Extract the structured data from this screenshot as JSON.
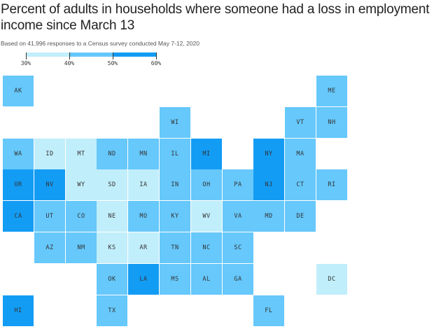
{
  "header": {
    "title": "Percent of adults in households where someone had a loss in employment income since March 13",
    "subtitle": "Based on 41,996 responses to a Census survey conducted May 7-12, 2020"
  },
  "colors": {
    "bin_30_40": "#c1eefb",
    "bin_40_50": "#66c8fb",
    "bin_50_60": "#139cf4"
  },
  "chart_data": {
    "type": "tile-grid-map",
    "title": "Percent of adults in households where someone had a loss in employment income since March 13",
    "subtitle": "Based on 41,996 responses to a Census survey conducted May 7-12, 2020",
    "legend": {
      "ticks": [
        "30%",
        "40%",
        "50%",
        "60%"
      ],
      "bins": [
        {
          "range": [
            30,
            40
          ],
          "color": "#c1eefb"
        },
        {
          "range": [
            40,
            50
          ],
          "color": "#66c8fb"
        },
        {
          "range": [
            50,
            60
          ],
          "color": "#139cf4"
        }
      ]
    },
    "states": [
      {
        "abbr": "AK",
        "row": 0,
        "col": 0,
        "bin": 1
      },
      {
        "abbr": "ME",
        "row": 0,
        "col": 10,
        "bin": 1
      },
      {
        "abbr": "WI",
        "row": 1,
        "col": 5,
        "bin": 1
      },
      {
        "abbr": "VT",
        "row": 1,
        "col": 9,
        "bin": 1
      },
      {
        "abbr": "NH",
        "row": 1,
        "col": 10,
        "bin": 1
      },
      {
        "abbr": "WA",
        "row": 2,
        "col": 0,
        "bin": 1
      },
      {
        "abbr": "ID",
        "row": 2,
        "col": 1,
        "bin": 0
      },
      {
        "abbr": "MT",
        "row": 2,
        "col": 2,
        "bin": 0
      },
      {
        "abbr": "ND",
        "row": 2,
        "col": 3,
        "bin": 1
      },
      {
        "abbr": "MN",
        "row": 2,
        "col": 4,
        "bin": 1
      },
      {
        "abbr": "IL",
        "row": 2,
        "col": 5,
        "bin": 1
      },
      {
        "abbr": "MI",
        "row": 2,
        "col": 6,
        "bin": 2
      },
      {
        "abbr": "NY",
        "row": 2,
        "col": 8,
        "bin": 2
      },
      {
        "abbr": "MA",
        "row": 2,
        "col": 9,
        "bin": 1
      },
      {
        "abbr": "OR",
        "row": 3,
        "col": 0,
        "bin": 2
      },
      {
        "abbr": "NV",
        "row": 3,
        "col": 1,
        "bin": 2
      },
      {
        "abbr": "WY",
        "row": 3,
        "col": 2,
        "bin": 0
      },
      {
        "abbr": "SD",
        "row": 3,
        "col": 3,
        "bin": 0
      },
      {
        "abbr": "IA",
        "row": 3,
        "col": 4,
        "bin": 0
      },
      {
        "abbr": "IN",
        "row": 3,
        "col": 5,
        "bin": 1
      },
      {
        "abbr": "OH",
        "row": 3,
        "col": 6,
        "bin": 1
      },
      {
        "abbr": "PA",
        "row": 3,
        "col": 7,
        "bin": 1
      },
      {
        "abbr": "NJ",
        "row": 3,
        "col": 8,
        "bin": 2
      },
      {
        "abbr": "CT",
        "row": 3,
        "col": 9,
        "bin": 1
      },
      {
        "abbr": "RI",
        "row": 3,
        "col": 10,
        "bin": 1
      },
      {
        "abbr": "CA",
        "row": 4,
        "col": 0,
        "bin": 2
      },
      {
        "abbr": "UT",
        "row": 4,
        "col": 1,
        "bin": 1
      },
      {
        "abbr": "CO",
        "row": 4,
        "col": 2,
        "bin": 1
      },
      {
        "abbr": "NE",
        "row": 4,
        "col": 3,
        "bin": 0
      },
      {
        "abbr": "MO",
        "row": 4,
        "col": 4,
        "bin": 1
      },
      {
        "abbr": "KY",
        "row": 4,
        "col": 5,
        "bin": 1
      },
      {
        "abbr": "WV",
        "row": 4,
        "col": 6,
        "bin": 0
      },
      {
        "abbr": "VA",
        "row": 4,
        "col": 7,
        "bin": 1
      },
      {
        "abbr": "MD",
        "row": 4,
        "col": 8,
        "bin": 1
      },
      {
        "abbr": "DE",
        "row": 4,
        "col": 9,
        "bin": 1
      },
      {
        "abbr": "AZ",
        "row": 5,
        "col": 1,
        "bin": 1
      },
      {
        "abbr": "NM",
        "row": 5,
        "col": 2,
        "bin": 1
      },
      {
        "abbr": "KS",
        "row": 5,
        "col": 3,
        "bin": 0
      },
      {
        "abbr": "AR",
        "row": 5,
        "col": 4,
        "bin": 0
      },
      {
        "abbr": "TN",
        "row": 5,
        "col": 5,
        "bin": 1
      },
      {
        "abbr": "NC",
        "row": 5,
        "col": 6,
        "bin": 1
      },
      {
        "abbr": "SC",
        "row": 5,
        "col": 7,
        "bin": 1
      },
      {
        "abbr": "OK",
        "row": 6,
        "col": 3,
        "bin": 1
      },
      {
        "abbr": "LA",
        "row": 6,
        "col": 4,
        "bin": 2
      },
      {
        "abbr": "MS",
        "row": 6,
        "col": 5,
        "bin": 1
      },
      {
        "abbr": "AL",
        "row": 6,
        "col": 6,
        "bin": 1
      },
      {
        "abbr": "GA",
        "row": 6,
        "col": 7,
        "bin": 1
      },
      {
        "abbr": "DC",
        "row": 6,
        "col": 10,
        "bin": 0
      },
      {
        "abbr": "HI",
        "row": 7,
        "col": 0,
        "bin": 2
      },
      {
        "abbr": "TX",
        "row": 7,
        "col": 3,
        "bin": 1
      },
      {
        "abbr": "FL",
        "row": 7,
        "col": 8,
        "bin": 1
      }
    ]
  }
}
